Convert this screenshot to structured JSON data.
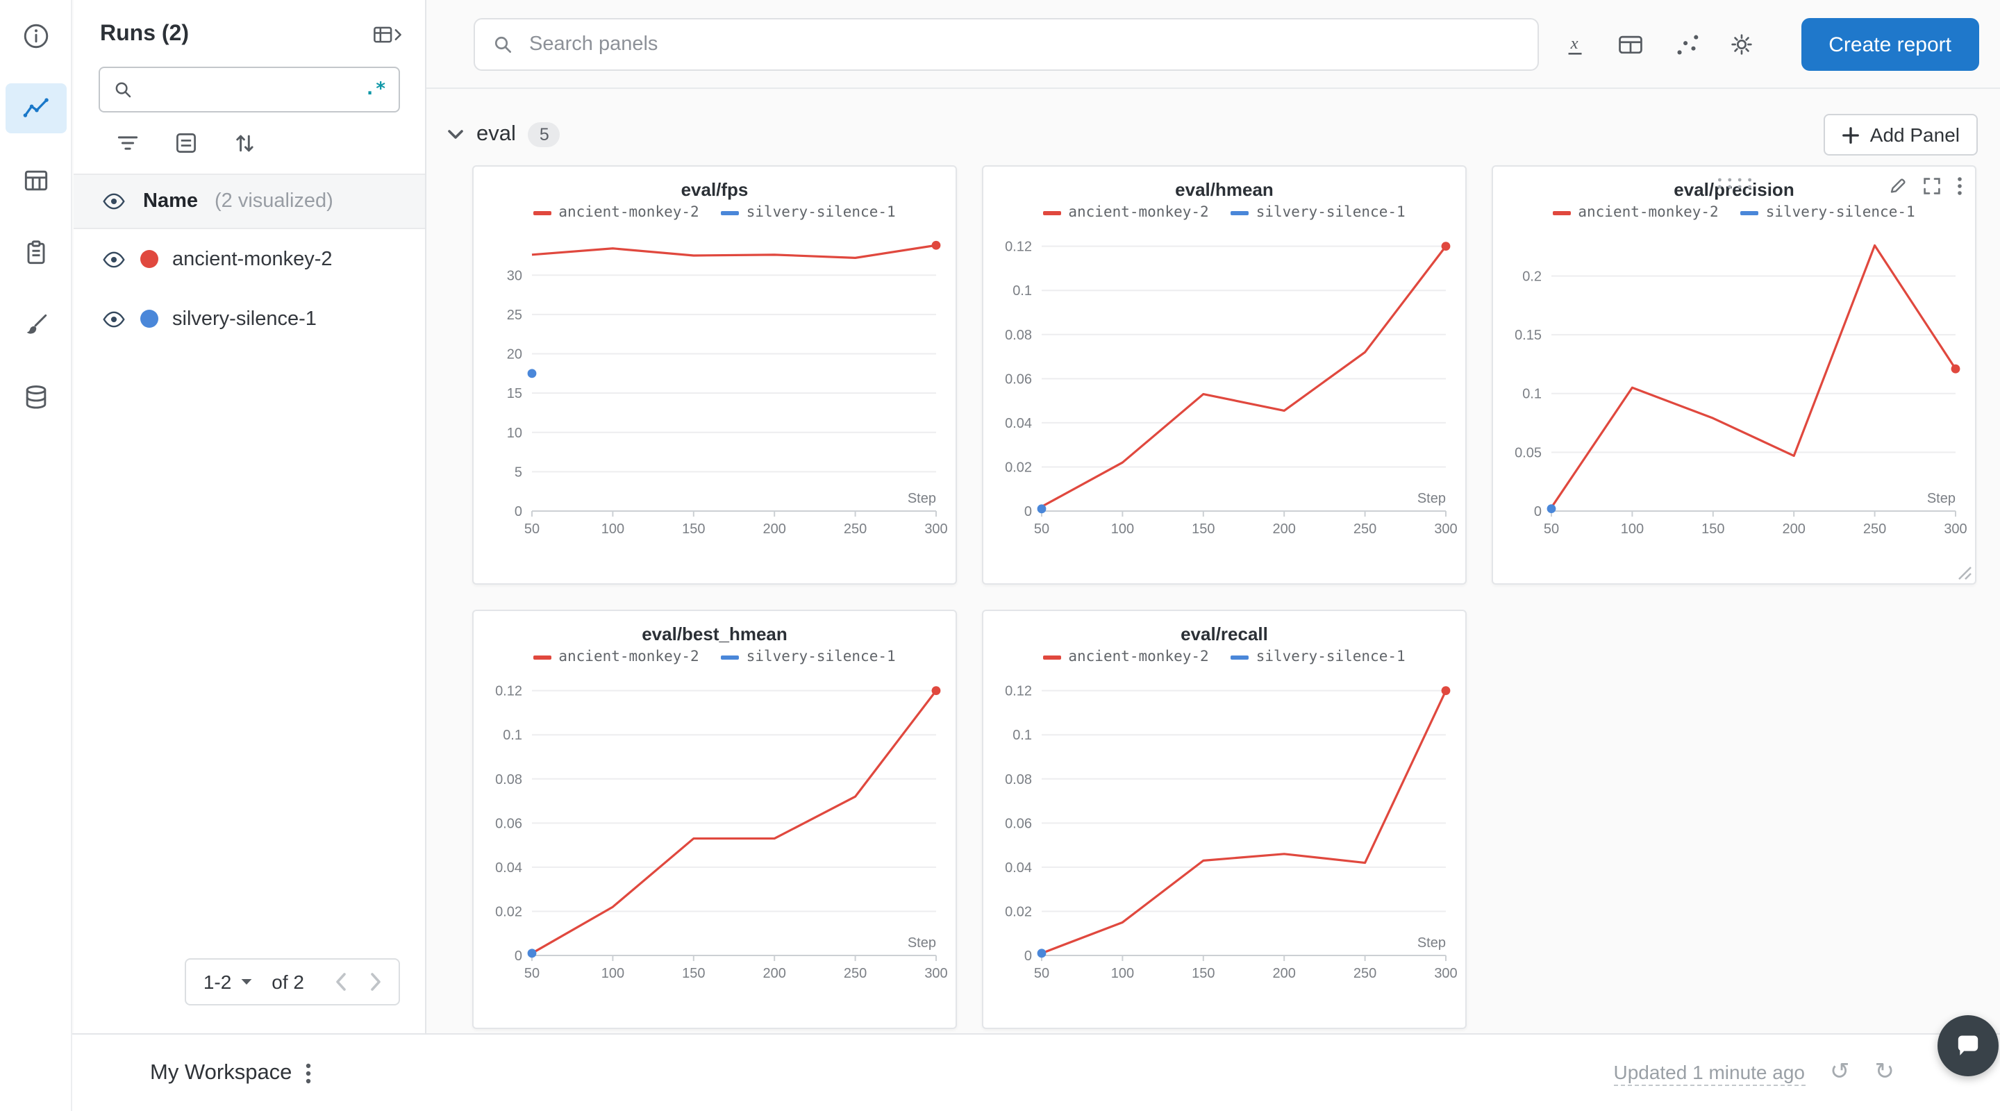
{
  "left_rail": {
    "icons": [
      "info",
      "line-chart",
      "table",
      "clipboard",
      "paintbrush",
      "database"
    ],
    "active_icon": "line-chart"
  },
  "sidebar": {
    "title": "Runs (2)",
    "table_toggle_icon": "table-expand",
    "search": {
      "placeholder": "",
      "regex_label": ".*"
    },
    "toolbar_icons": [
      "filter",
      "list-settings",
      "sort"
    ],
    "header": {
      "name": "Name",
      "visualized": "(2 visualized)"
    },
    "runs": [
      {
        "name": "ancient-monkey-2",
        "color": "#e0483e",
        "visible": true
      },
      {
        "name": "silvery-silence-1",
        "color": "#4a87d9",
        "visible": true
      }
    ],
    "pagination": {
      "range": "1-2",
      "of": "of 2"
    }
  },
  "topbar": {
    "search_placeholder": "Search panels",
    "icons": [
      "x-axis",
      "panel-settings",
      "scatter-settings",
      "settings-gear"
    ],
    "create_report": "Create report"
  },
  "section": {
    "title": "eval",
    "count": "5",
    "add_panel": "Add Panel"
  },
  "bottom_bar": {
    "workspace": "My Workspace",
    "updated": "Updated 1 minute ago",
    "icons": [
      "kebab-menu",
      "undo",
      "redo",
      "chat"
    ]
  },
  "colors": {
    "accent_blue": "#1f78cb",
    "run_red": "#e0483e",
    "run_blue": "#4a87d9",
    "rail_active_bg": "#ddeefb"
  },
  "chart_data": [
    {
      "type": "line",
      "title": "eval/fps",
      "xlabel": "Step",
      "xlim": [
        50,
        300
      ],
      "ylim": [
        0,
        35.5
      ],
      "x_ticks": [
        50,
        100,
        150,
        200,
        250,
        300
      ],
      "y_ticks": [
        0,
        5,
        10,
        15,
        20,
        25,
        30
      ],
      "grid": true,
      "legend_position": "top",
      "series": [
        {
          "name": "ancient-monkey-2",
          "color": "#e0483e",
          "x": [
            50,
            100,
            150,
            200,
            250,
            300
          ],
          "y": [
            32.6,
            33.4,
            32.5,
            32.6,
            32.2,
            33.8
          ],
          "end_dot": true
        },
        {
          "name": "silvery-silence-1",
          "color": "#4a87d9",
          "x": [
            50
          ],
          "y": [
            17.5
          ],
          "end_dot": true
        }
      ],
      "hovered": false
    },
    {
      "type": "line",
      "title": "eval/hmean",
      "xlabel": "Step",
      "xlim": [
        50,
        300
      ],
      "ylim": [
        0,
        0.1265
      ],
      "x_ticks": [
        50,
        100,
        150,
        200,
        250,
        300
      ],
      "y_ticks": [
        0,
        0.02,
        0.04,
        0.06,
        0.08,
        0.1,
        0.12
      ],
      "grid": true,
      "legend_position": "top",
      "series": [
        {
          "name": "ancient-monkey-2",
          "color": "#e0483e",
          "x": [
            50,
            100,
            150,
            200,
            250,
            300
          ],
          "y": [
            0.002,
            0.022,
            0.053,
            0.0455,
            0.072,
            0.12
          ],
          "end_dot": true
        },
        {
          "name": "silvery-silence-1",
          "color": "#4a87d9",
          "x": [
            50
          ],
          "y": [
            0.001
          ],
          "end_dot": true
        }
      ],
      "hovered": false
    },
    {
      "type": "line",
      "title": "eval/precision",
      "xlabel": "Step",
      "xlim": [
        50,
        300
      ],
      "ylim": [
        0,
        0.2375
      ],
      "x_ticks": [
        50,
        100,
        150,
        200,
        250,
        300
      ],
      "y_ticks": [
        0,
        0.05,
        0.1,
        0.15,
        0.2
      ],
      "grid": true,
      "legend_position": "top",
      "series": [
        {
          "name": "ancient-monkey-2",
          "color": "#e0483e",
          "x": [
            50,
            100,
            150,
            200,
            250,
            300
          ],
          "y": [
            0.003,
            0.105,
            0.079,
            0.047,
            0.226,
            0.121
          ],
          "end_dot": true
        },
        {
          "name": "silvery-silence-1",
          "color": "#4a87d9",
          "x": [
            50
          ],
          "y": [
            0.002
          ],
          "end_dot": true
        }
      ],
      "hovered": true
    },
    {
      "type": "line",
      "title": "eval/best_hmean",
      "xlabel": "Step",
      "xlim": [
        50,
        300
      ],
      "ylim": [
        0,
        0.1265
      ],
      "x_ticks": [
        50,
        100,
        150,
        200,
        250,
        300
      ],
      "y_ticks": [
        0,
        0.02,
        0.04,
        0.06,
        0.08,
        0.1,
        0.12
      ],
      "grid": true,
      "legend_position": "top",
      "series": [
        {
          "name": "ancient-monkey-2",
          "color": "#e0483e",
          "x": [
            50,
            100,
            150,
            200,
            250,
            300
          ],
          "y": [
            0.001,
            0.022,
            0.053,
            0.053,
            0.072,
            0.12
          ],
          "end_dot": true
        },
        {
          "name": "silvery-silence-1",
          "color": "#4a87d9",
          "x": [
            50
          ],
          "y": [
            0.001
          ],
          "end_dot": true
        }
      ],
      "hovered": false
    },
    {
      "type": "line",
      "title": "eval/recall",
      "xlabel": "Step",
      "xlim": [
        50,
        300
      ],
      "ylim": [
        0,
        0.1265
      ],
      "x_ticks": [
        50,
        100,
        150,
        200,
        250,
        300
      ],
      "y_ticks": [
        0,
        0.02,
        0.04,
        0.06,
        0.08,
        0.1,
        0.12
      ],
      "grid": true,
      "legend_position": "top",
      "series": [
        {
          "name": "ancient-monkey-2",
          "color": "#e0483e",
          "x": [
            50,
            100,
            150,
            200,
            250,
            300
          ],
          "y": [
            0.001,
            0.015,
            0.043,
            0.046,
            0.042,
            0.12
          ],
          "end_dot": true
        },
        {
          "name": "silvery-silence-1",
          "color": "#4a87d9",
          "x": [
            50
          ],
          "y": [
            0.001
          ],
          "end_dot": true
        }
      ],
      "hovered": false
    }
  ]
}
